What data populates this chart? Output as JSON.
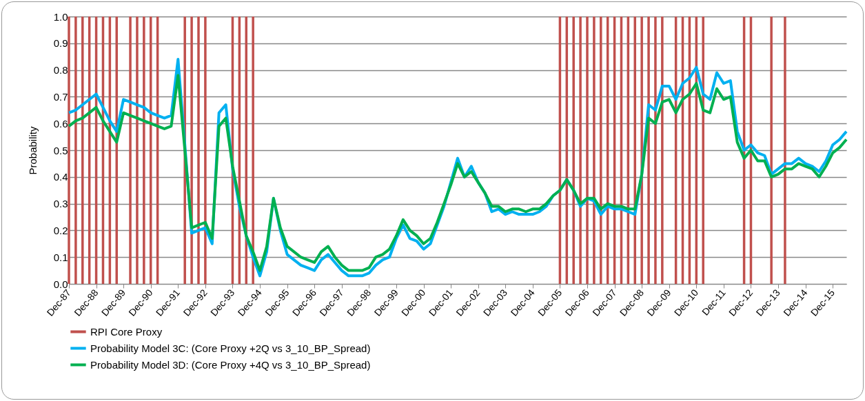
{
  "chart_data": {
    "type": "line",
    "ylabel": "Probability",
    "categories": [
      "Dec-87",
      null,
      null,
      null,
      "Dec-88",
      null,
      null,
      null,
      "Dec-89",
      null,
      null,
      null,
      "Dec-90",
      null,
      null,
      null,
      "Dec-91",
      null,
      null,
      null,
      "Dec-92",
      null,
      null,
      null,
      "Dec-93",
      null,
      null,
      null,
      "Dec-94",
      null,
      null,
      null,
      "Dec-95",
      null,
      null,
      null,
      "Dec-96",
      null,
      null,
      null,
      "Dec-97",
      null,
      null,
      null,
      "Dec-98",
      null,
      null,
      null,
      "Dec-99",
      null,
      null,
      null,
      "Dec-00",
      null,
      null,
      null,
      "Dec-01",
      null,
      null,
      null,
      "Dec-02",
      null,
      null,
      null,
      "Dec-03",
      null,
      null,
      null,
      "Dec-04",
      null,
      null,
      null,
      "Dec-05",
      null,
      null,
      null,
      "Dec-06",
      null,
      null,
      null,
      "Dec-07",
      null,
      null,
      null,
      "Dec-08",
      null,
      null,
      null,
      "Dec-09",
      null,
      null,
      null,
      "Dec-10",
      null,
      null,
      null,
      "Dec-11",
      null,
      null,
      null,
      "Dec-12",
      null,
      null,
      null,
      "Dec-13",
      null,
      null,
      null,
      "Dec-14",
      null,
      null,
      null,
      "Dec-15",
      null,
      null
    ],
    "series": [
      {
        "name": "RPI Core Proxy",
        "type": "bar",
        "color": "#c0504d",
        "values": [
          1,
          1,
          1,
          1,
          1,
          1,
          1,
          1,
          null,
          1,
          1,
          1,
          1,
          1,
          null,
          null,
          null,
          1,
          1,
          1,
          1,
          null,
          null,
          null,
          1,
          1,
          1,
          1,
          null,
          null,
          null,
          null,
          null,
          null,
          null,
          null,
          null,
          null,
          null,
          null,
          null,
          null,
          null,
          null,
          null,
          null,
          null,
          null,
          null,
          null,
          null,
          null,
          null,
          null,
          null,
          null,
          null,
          null,
          null,
          null,
          null,
          null,
          null,
          null,
          null,
          null,
          null,
          null,
          null,
          null,
          null,
          null,
          1,
          1,
          1,
          1,
          1,
          1,
          1,
          1,
          1,
          1,
          1,
          1,
          1,
          1,
          1,
          1,
          null,
          1,
          1,
          1,
          1,
          1,
          null,
          null,
          null,
          null,
          null,
          1,
          1,
          null,
          null,
          1,
          null,
          1,
          null,
          null,
          null,
          null,
          null,
          null,
          null,
          null,
          null
        ]
      },
      {
        "name": "Probability Model 3C: (Core Proxy +2Q vs 3_10_BP_Spread)",
        "type": "line",
        "color": "#00b0f0",
        "values": [
          0.64,
          0.65,
          0.67,
          0.69,
          0.71,
          0.66,
          0.61,
          0.57,
          0.69,
          0.68,
          0.67,
          0.66,
          0.64,
          0.63,
          0.62,
          0.63,
          0.84,
          0.52,
          0.19,
          0.2,
          0.21,
          0.15,
          0.64,
          0.67,
          0.43,
          0.29,
          0.18,
          0.1,
          0.03,
          0.12,
          0.32,
          0.2,
          0.11,
          0.09,
          0.07,
          0.06,
          0.05,
          0.09,
          0.11,
          0.08,
          0.05,
          0.03,
          0.03,
          0.03,
          0.04,
          0.07,
          0.09,
          0.1,
          0.17,
          0.22,
          0.17,
          0.16,
          0.13,
          0.15,
          0.22,
          0.29,
          0.38,
          0.47,
          0.4,
          0.44,
          0.38,
          0.34,
          0.27,
          0.28,
          0.26,
          0.27,
          0.26,
          0.26,
          0.26,
          0.27,
          0.29,
          0.33,
          0.35,
          0.39,
          0.35,
          0.29,
          0.32,
          0.31,
          0.26,
          0.29,
          0.28,
          0.28,
          0.27,
          0.26,
          0.41,
          0.67,
          0.65,
          0.74,
          0.74,
          0.69,
          0.75,
          0.77,
          0.81,
          0.71,
          0.69,
          0.79,
          0.75,
          0.76,
          0.57,
          0.5,
          0.52,
          0.49,
          0.48,
          0.41,
          0.43,
          0.45,
          0.45,
          0.47,
          0.45,
          0.44,
          0.42,
          0.46,
          0.52,
          0.54,
          0.57
        ]
      },
      {
        "name": "Probability Model 3D: (Core Proxy +4Q vs 3_10_BP_Spread)",
        "type": "line",
        "color": "#00b050",
        "values": [
          0.59,
          0.61,
          0.62,
          0.64,
          0.66,
          0.61,
          0.57,
          0.53,
          0.64,
          0.63,
          0.62,
          0.61,
          0.6,
          0.59,
          0.58,
          0.59,
          0.78,
          0.5,
          0.21,
          0.22,
          0.23,
          0.17,
          0.59,
          0.62,
          0.44,
          0.31,
          0.18,
          0.12,
          0.05,
          0.14,
          0.32,
          0.21,
          0.14,
          0.12,
          0.1,
          0.09,
          0.08,
          0.12,
          0.14,
          0.1,
          0.07,
          0.05,
          0.05,
          0.05,
          0.06,
          0.1,
          0.11,
          0.13,
          0.18,
          0.24,
          0.2,
          0.18,
          0.15,
          0.17,
          0.23,
          0.3,
          0.37,
          0.45,
          0.4,
          0.42,
          0.38,
          0.34,
          0.29,
          0.29,
          0.27,
          0.28,
          0.28,
          0.27,
          0.28,
          0.28,
          0.3,
          0.33,
          0.35,
          0.39,
          0.35,
          0.3,
          0.32,
          0.32,
          0.28,
          0.3,
          0.29,
          0.29,
          0.28,
          0.28,
          0.41,
          0.62,
          0.6,
          0.68,
          0.69,
          0.64,
          0.69,
          0.71,
          0.75,
          0.65,
          0.64,
          0.73,
          0.69,
          0.7,
          0.53,
          0.47,
          0.5,
          0.46,
          0.46,
          0.4,
          0.41,
          0.43,
          0.43,
          0.45,
          0.44,
          0.43,
          0.4,
          0.44,
          0.49,
          0.51,
          0.54
        ]
      }
    ],
    "ylim": [
      0,
      1
    ],
    "yticks": [
      {
        "value": 0,
        "label": "0.0"
      },
      {
        "value": 0.1,
        "label": "0.1"
      },
      {
        "value": 0.2,
        "label": "0.2"
      },
      {
        "value": 0.3,
        "label": "0.3"
      },
      {
        "value": 0.4,
        "label": "0.4"
      },
      {
        "value": 0.5,
        "label": "0.5"
      },
      {
        "value": 0.6,
        "label": "0.6"
      },
      {
        "value": 0.7,
        "label": "0.7"
      },
      {
        "value": 0.8,
        "label": "0.8"
      },
      {
        "value": 0.9,
        "label": "0.9"
      },
      {
        "value": 1,
        "label": "1.0"
      }
    ],
    "grid": "y",
    "legend": "bottom",
    "marker": "none",
    "line_style": "solid"
  }
}
